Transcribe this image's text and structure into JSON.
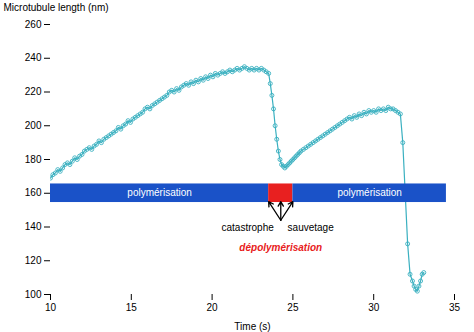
{
  "chart_data": {
    "type": "line",
    "xlabel": "Time (s)",
    "ylabel": "Microtubule length (nm)",
    "xlim": [
      10,
      35
    ],
    "ylim": [
      100,
      260
    ],
    "xticks": [
      10,
      15,
      20,
      25,
      30,
      35
    ],
    "yticks": [
      100,
      120,
      140,
      160,
      180,
      200,
      220,
      240,
      260
    ],
    "grid": false,
    "color": "#3ab0c0",
    "marker": "circle",
    "x": [
      10.0,
      10.15,
      10.3,
      10.45,
      10.6,
      10.75,
      10.9,
      11.05,
      11.2,
      11.35,
      11.5,
      11.65,
      11.8,
      11.95,
      12.1,
      12.25,
      12.4,
      12.55,
      12.7,
      12.85,
      13.0,
      13.15,
      13.3,
      13.45,
      13.6,
      13.75,
      13.9,
      14.05,
      14.2,
      14.35,
      14.5,
      14.65,
      14.8,
      14.95,
      15.1,
      15.25,
      15.4,
      15.55,
      15.7,
      15.85,
      16.0,
      16.15,
      16.3,
      16.45,
      16.6,
      16.75,
      16.9,
      17.05,
      17.2,
      17.35,
      17.5,
      17.65,
      17.8,
      17.95,
      18.1,
      18.25,
      18.4,
      18.55,
      18.7,
      18.85,
      19.0,
      19.15,
      19.3,
      19.45,
      19.6,
      19.75,
      19.9,
      20.05,
      20.2,
      20.35,
      20.5,
      20.65,
      20.8,
      20.95,
      21.1,
      21.25,
      21.4,
      21.55,
      21.7,
      21.85,
      22.0,
      22.15,
      22.3,
      22.45,
      22.6,
      22.75,
      22.9,
      23.05,
      23.2,
      23.35,
      23.5,
      23.6,
      23.7,
      23.8,
      23.9,
      24.0,
      24.1,
      24.2,
      24.3,
      24.4,
      24.5,
      24.6,
      24.7,
      24.8,
      24.9,
      25.0,
      25.1,
      25.2,
      25.3,
      25.4,
      25.5,
      25.65,
      25.8,
      25.95,
      26.1,
      26.25,
      26.4,
      26.55,
      26.7,
      26.85,
      27.0,
      27.15,
      27.3,
      27.45,
      27.6,
      27.75,
      27.9,
      28.05,
      28.2,
      28.35,
      28.5,
      28.65,
      28.8,
      28.95,
      29.1,
      29.25,
      29.4,
      29.55,
      29.7,
      29.85,
      30.0,
      30.15,
      30.3,
      30.45,
      30.6,
      30.75,
      30.9,
      31.05,
      31.2,
      31.35,
      31.5,
      31.65,
      31.8,
      31.95,
      32.1,
      32.25,
      32.4,
      32.5,
      32.6,
      32.7,
      32.8,
      32.9,
      33.0,
      33.1
    ],
    "values": [
      169,
      171,
      172,
      174,
      173,
      175,
      177,
      178,
      177,
      179,
      181,
      180,
      182,
      183,
      185,
      186,
      187,
      186,
      188,
      189,
      191,
      190,
      192,
      193,
      194,
      195,
      196,
      197,
      199,
      198,
      200,
      201,
      203,
      202,
      204,
      205,
      206,
      207,
      208,
      210,
      211,
      210,
      212,
      213,
      214,
      215,
      216,
      217,
      218,
      220,
      221,
      220,
      222,
      221,
      223,
      224,
      225,
      224,
      226,
      225,
      227,
      226,
      228,
      227,
      229,
      228,
      230,
      229,
      231,
      230,
      231,
      232,
      231,
      232,
      233,
      232,
      233,
      234,
      233,
      234,
      235,
      234,
      233,
      234,
      233,
      234,
      233,
      234,
      233,
      232,
      231,
      225,
      218,
      210,
      200,
      192,
      185,
      180,
      177,
      176,
      175,
      176,
      177,
      178,
      179,
      180,
      181,
      182,
      183,
      184,
      185,
      186,
      187,
      188,
      189,
      190,
      191,
      192,
      193,
      194,
      195,
      196,
      197,
      198,
      199,
      200,
      201,
      202,
      203,
      204,
      205,
      204,
      206,
      205,
      207,
      206,
      208,
      207,
      209,
      208,
      209,
      208,
      210,
      209,
      210,
      209,
      211,
      210,
      210,
      209,
      208,
      207,
      190,
      160,
      130,
      112,
      108,
      105,
      103,
      102,
      105,
      108,
      112,
      113
    ],
    "bars": [
      {
        "x1": 10,
        "x2": 23.5,
        "y1": 154.5,
        "y2": 165.5,
        "color": "#1a52c8",
        "label": "polymérisation"
      },
      {
        "x1": 23.5,
        "x2": 25.0,
        "y1": 154.5,
        "y2": 165.5,
        "color": "#e82020"
      },
      {
        "x1": 25.0,
        "x2": 34.5,
        "y1": 154.5,
        "y2": 165.5,
        "color": "#1a52c8",
        "label": "polymérisation"
      }
    ],
    "arrows": [
      {
        "x1": 24.25,
        "y1": 144,
        "x2": 23.5,
        "y2": 155
      },
      {
        "x1": 24.25,
        "y1": 144,
        "x2": 24.25,
        "y2": 155
      },
      {
        "x1": 24.25,
        "y1": 144,
        "x2": 25.0,
        "y2": 155
      }
    ],
    "annotations": [
      {
        "text": "catastrophe",
        "x": 22.2,
        "y": 142
      },
      {
        "text": "sauvetage",
        "x": 26.1,
        "y": 142
      },
      {
        "text": "dépolymérisation",
        "x": 24.25,
        "y": 130,
        "color": "#e82020"
      }
    ]
  }
}
